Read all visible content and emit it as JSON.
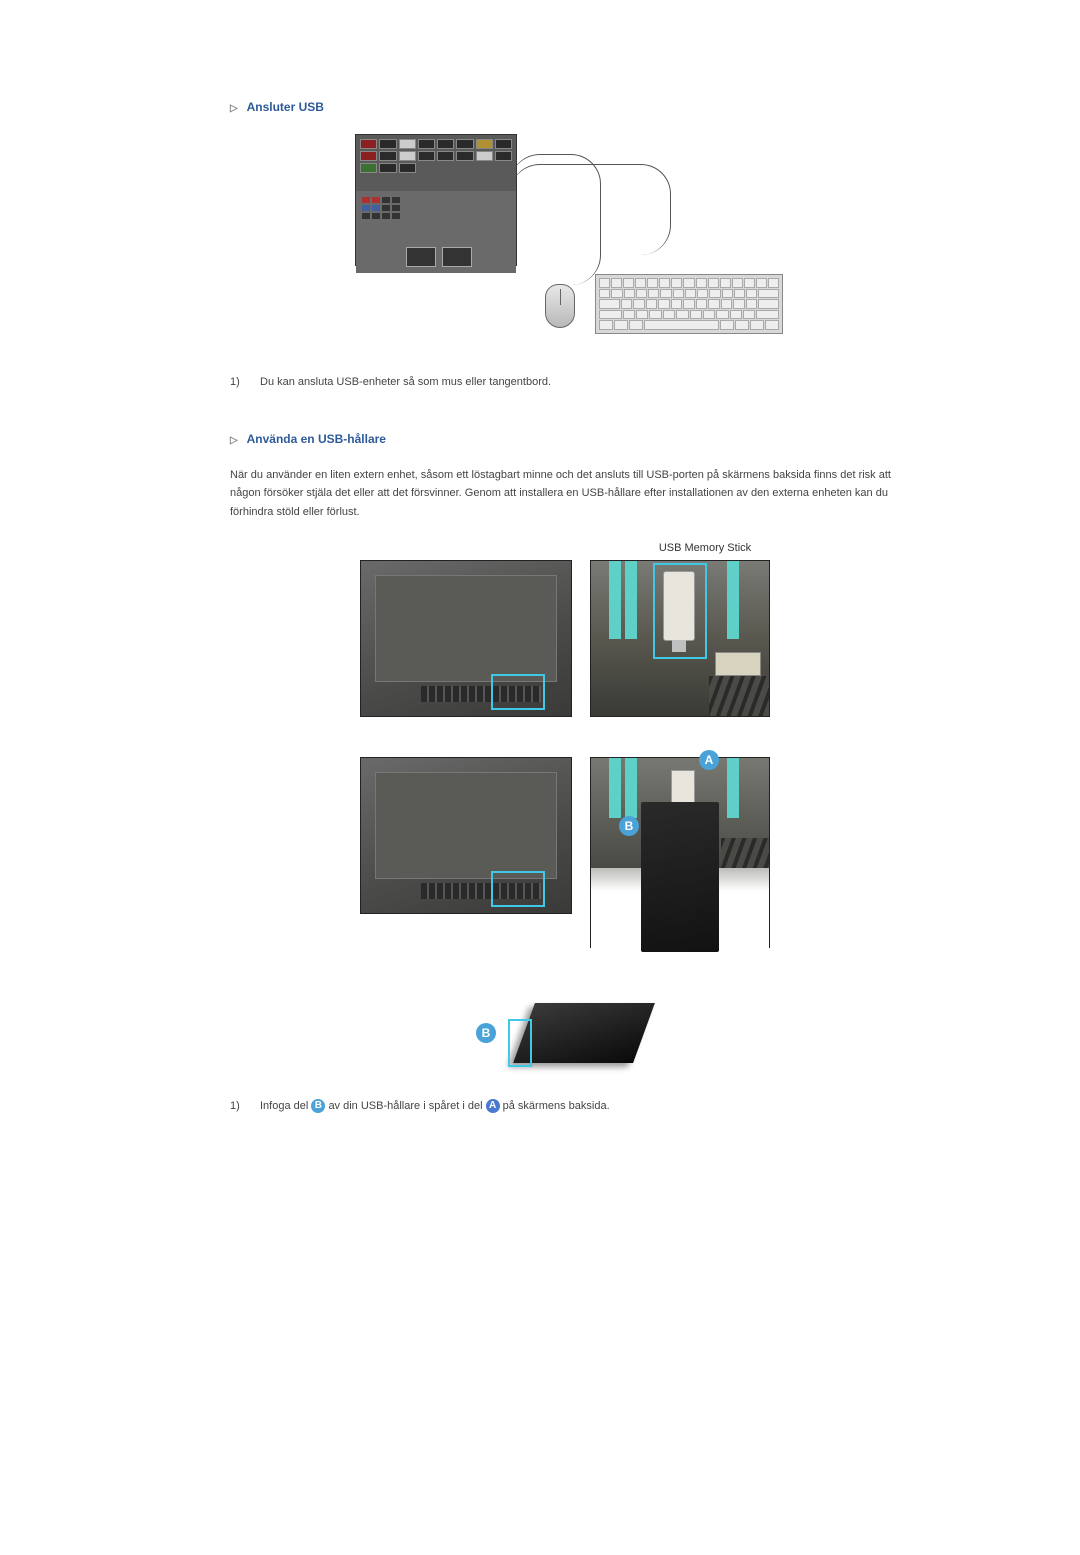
{
  "section1": {
    "title": "Ansluter USB",
    "list": [
      {
        "n": "1)",
        "text": "Du kan ansluta USB-enheter så som mus eller tangentbord."
      }
    ]
  },
  "section2": {
    "title": "Använda en USB-hållare",
    "paragraph": "När du använder en liten extern enhet, såsom ett löstagbart minne och det ansluts till USB-porten på skärmens baksida finns det risk att någon försöker stjäla det eller att det försvinner. Genom att installera en USB-hållare efter installationen av den externa enheten kan du förhindra stöld eller förlust.",
    "usb_label": "USB Memory Stick",
    "mark_a": "A",
    "mark_b": "B",
    "list": [
      {
        "n": "1)",
        "t1": "Infoga del ",
        "b": "B",
        "t2": " av din USB-hållare i spåret i del ",
        "a": "A",
        "t3": " på skärmens baksida."
      }
    ]
  },
  "colors": {
    "heading": "#2d5b9a",
    "text": "#444444",
    "highlight_border": "#3fc9e6",
    "marker_bg": "#4aa3d8"
  }
}
